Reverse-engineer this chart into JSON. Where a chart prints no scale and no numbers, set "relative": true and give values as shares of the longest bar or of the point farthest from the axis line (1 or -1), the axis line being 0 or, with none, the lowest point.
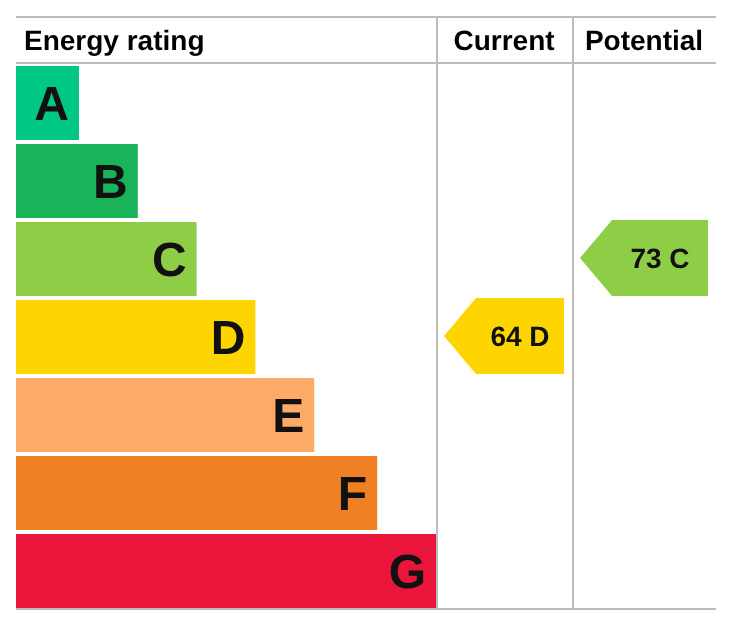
{
  "chart_data": {
    "type": "bar",
    "orientation": "horizontal",
    "relative": true,
    "title": "Energy rating",
    "categories": [
      "A",
      "B",
      "C",
      "D",
      "E",
      "F",
      "G"
    ],
    "values": [
      0.15,
      0.29,
      0.43,
      0.57,
      0.71,
      0.86,
      1
    ],
    "colors": [
      "#00c781",
      "#19b459",
      "#8dce46",
      "#ffd500",
      "#fcaa65",
      "#ef8023",
      "#e9153b"
    ],
    "annotations": [
      "Current",
      "Potential",
      "64 D",
      "73 C"
    ]
  }
}
